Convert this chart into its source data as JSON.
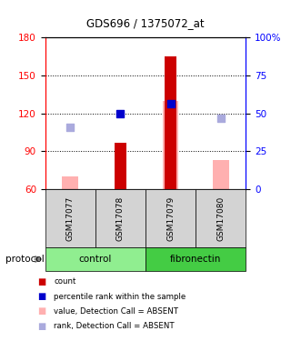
{
  "title": "GDS696 / 1375072_at",
  "samples": [
    "GSM17077",
    "GSM17078",
    "GSM17079",
    "GSM17080"
  ],
  "ylim_left": [
    60,
    180
  ],
  "ylim_right": [
    0,
    100
  ],
  "yticks_left": [
    60,
    90,
    120,
    150,
    180
  ],
  "yticks_right": [
    0,
    25,
    50,
    75,
    100
  ],
  "yticklabels_right": [
    "0",
    "25",
    "50",
    "75",
    "100%"
  ],
  "red_bars": [
    null,
    97,
    165,
    null
  ],
  "red_bar_base": 60,
  "pink_bars": [
    70,
    null,
    130,
    83
  ],
  "pink_bar_base": 60,
  "blue_squares": [
    null,
    120,
    128,
    null
  ],
  "lavender_squares": [
    109,
    null,
    null,
    116
  ],
  "bar_width": 0.32,
  "red_color": "#cc0000",
  "pink_color": "#ffb0b0",
  "blue_color": "#0000cc",
  "lavender_color": "#aaaadd",
  "label_area_color": "#d3d3d3",
  "control_color": "#90ee90",
  "fibronectin_color": "#44cc44",
  "legend_items": [
    {
      "color": "#cc0000",
      "label": "count"
    },
    {
      "color": "#0000cc",
      "label": "percentile rank within the sample"
    },
    {
      "color": "#ffb0b0",
      "label": "value, Detection Call = ABSENT"
    },
    {
      "color": "#aaaadd",
      "label": "rank, Detection Call = ABSENT"
    }
  ]
}
